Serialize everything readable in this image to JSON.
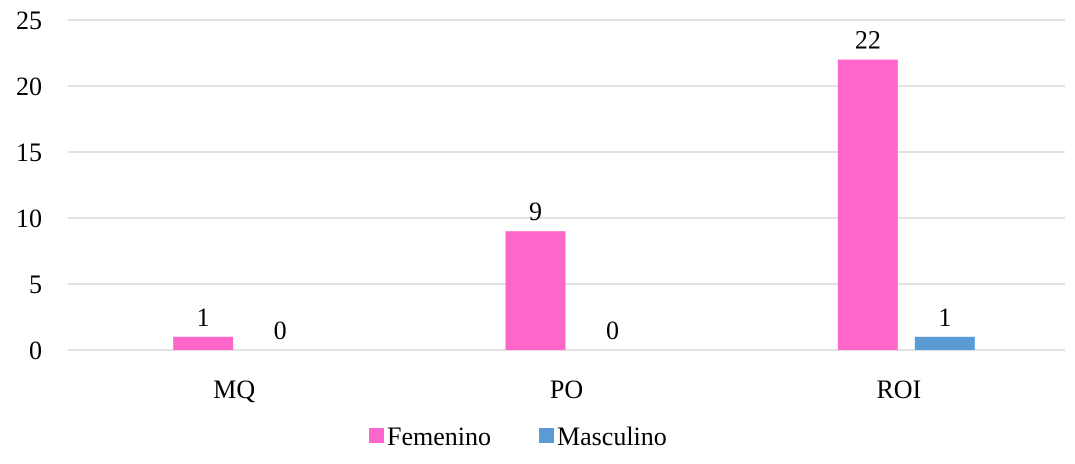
{
  "chart_data": {
    "type": "bar",
    "categories": [
      "MQ",
      "PO",
      "ROI"
    ],
    "series": [
      {
        "name": "Femenino",
        "values": [
          1,
          9,
          22
        ],
        "color": "#ff66cc"
      },
      {
        "name": "Masculino",
        "values": [
          0,
          0,
          1
        ],
        "color": "#5b9bd5"
      }
    ],
    "ylim": [
      0,
      25
    ],
    "yticks": [
      "0",
      "5",
      "10",
      "15",
      "20",
      "25"
    ],
    "grid": true,
    "legend": "bottom-center",
    "data_labels": true
  }
}
